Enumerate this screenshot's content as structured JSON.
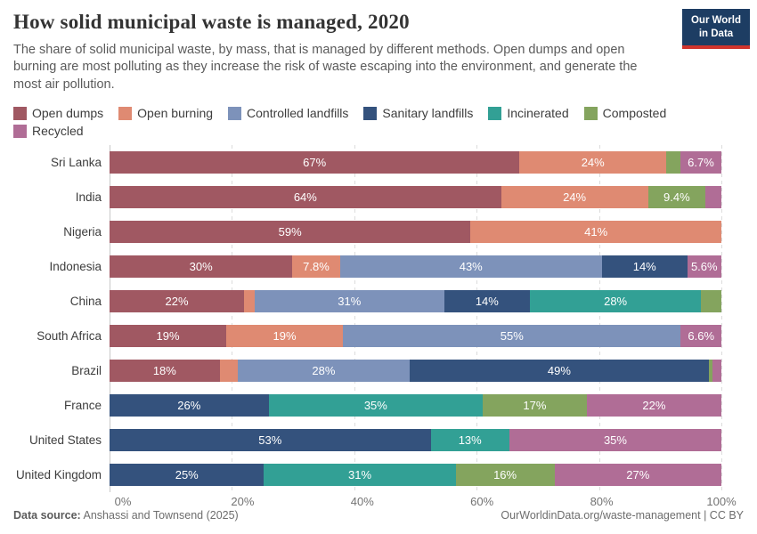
{
  "header": {
    "title": "How solid municipal waste is managed, 2020",
    "subtitle": "The share of solid municipal waste, by mass, that is managed by different methods. Open dumps and open burning are most polluting as they increase the risk of waste escaping into the environment, and generate the most air pollution.",
    "logo": {
      "line1": "Our World",
      "line2": "in Data"
    }
  },
  "footer": {
    "source_label": "Data source:",
    "source_text": " Anshassi and Townsend (2025)",
    "credit": "OurWorldinData.org/waste-management | CC BY"
  },
  "chart_data": {
    "type": "bar",
    "variant": "stacked-horizontal",
    "title": "How solid municipal waste is managed, 2020",
    "xlabel": "",
    "ylabel": "",
    "xlim": [
      0,
      100
    ],
    "x_ticks": [
      "0%",
      "20%",
      "40%",
      "60%",
      "80%",
      "100%"
    ],
    "grid": "vertical-dashed",
    "legend_position": "top",
    "categories": [
      "Open dumps",
      "Open burning",
      "Controlled landfills",
      "Sanitary landfills",
      "Incinerated",
      "Composted",
      "Recycled"
    ],
    "category_colors": {
      "Open dumps": "#A05862",
      "Open burning": "#DF8A72",
      "Controlled landfills": "#7D92BA",
      "Sanitary landfills": "#34527D",
      "Incinerated": "#32A095",
      "Composted": "#84A45E",
      "Recycled": "#B06D96"
    },
    "rows": [
      {
        "country": "Sri Lanka",
        "segments": [
          {
            "category": "Open dumps",
            "value": 67,
            "label": "67%"
          },
          {
            "category": "Open burning",
            "value": 24,
            "label": "24%"
          },
          {
            "category": "Composted",
            "value": 2.3,
            "label": ""
          },
          {
            "category": "Recycled",
            "value": 6.7,
            "label": "6.7%"
          }
        ]
      },
      {
        "country": "India",
        "segments": [
          {
            "category": "Open dumps",
            "value": 64,
            "label": "64%"
          },
          {
            "category": "Open burning",
            "value": 24,
            "label": "24%"
          },
          {
            "category": "Composted",
            "value": 9.4,
            "label": "9.4%"
          },
          {
            "category": "Recycled",
            "value": 2.6,
            "label": ""
          }
        ]
      },
      {
        "country": "Nigeria",
        "segments": [
          {
            "category": "Open dumps",
            "value": 59,
            "label": "59%"
          },
          {
            "category": "Open burning",
            "value": 41,
            "label": "41%"
          }
        ]
      },
      {
        "country": "Indonesia",
        "segments": [
          {
            "category": "Open dumps",
            "value": 30,
            "label": "30%"
          },
          {
            "category": "Open burning",
            "value": 7.8,
            "label": "7.8%"
          },
          {
            "category": "Controlled landfills",
            "value": 43,
            "label": "43%"
          },
          {
            "category": "Sanitary landfills",
            "value": 14,
            "label": "14%"
          },
          {
            "category": "Recycled",
            "value": 5.6,
            "label": "5.6%"
          }
        ]
      },
      {
        "country": "China",
        "segments": [
          {
            "category": "Open dumps",
            "value": 22,
            "label": "22%"
          },
          {
            "category": "Open burning",
            "value": 1.7,
            "label": ""
          },
          {
            "category": "Controlled landfills",
            "value": 31,
            "label": "31%"
          },
          {
            "category": "Sanitary landfills",
            "value": 14,
            "label": "14%"
          },
          {
            "category": "Incinerated",
            "value": 28,
            "label": "28%"
          },
          {
            "category": "Composted",
            "value": 3.3,
            "label": ""
          }
        ]
      },
      {
        "country": "South Africa",
        "segments": [
          {
            "category": "Open dumps",
            "value": 19,
            "label": "19%"
          },
          {
            "category": "Open burning",
            "value": 19,
            "label": "19%"
          },
          {
            "category": "Controlled landfills",
            "value": 55,
            "label": "55%"
          },
          {
            "category": "Recycled",
            "value": 6.6,
            "label": "6.6%"
          }
        ]
      },
      {
        "country": "Brazil",
        "segments": [
          {
            "category": "Open dumps",
            "value": 18,
            "label": "18%"
          },
          {
            "category": "Open burning",
            "value": 3,
            "label": ""
          },
          {
            "category": "Controlled landfills",
            "value": 28,
            "label": "28%"
          },
          {
            "category": "Sanitary landfills",
            "value": 49,
            "label": "49%"
          },
          {
            "category": "Composted",
            "value": 0.5,
            "label": ""
          },
          {
            "category": "Recycled",
            "value": 1.5,
            "label": ""
          }
        ]
      },
      {
        "country": "France",
        "segments": [
          {
            "category": "Sanitary landfills",
            "value": 26,
            "label": "26%"
          },
          {
            "category": "Incinerated",
            "value": 35,
            "label": "35%"
          },
          {
            "category": "Composted",
            "value": 17,
            "label": "17%"
          },
          {
            "category": "Recycled",
            "value": 22,
            "label": "22%"
          }
        ]
      },
      {
        "country": "United States",
        "segments": [
          {
            "category": "Sanitary landfills",
            "value": 53,
            "label": "53%"
          },
          {
            "category": "Incinerated",
            "value": 13,
            "label": "13%"
          },
          {
            "category": "Recycled",
            "value": 35,
            "label": "35%"
          }
        ]
      },
      {
        "country": "United Kingdom",
        "segments": [
          {
            "category": "Sanitary landfills",
            "value": 25,
            "label": "25%"
          },
          {
            "category": "Incinerated",
            "value": 31,
            "label": "31%"
          },
          {
            "category": "Composted",
            "value": 16,
            "label": "16%"
          },
          {
            "category": "Recycled",
            "value": 27,
            "label": "27%"
          }
        ]
      }
    ]
  }
}
